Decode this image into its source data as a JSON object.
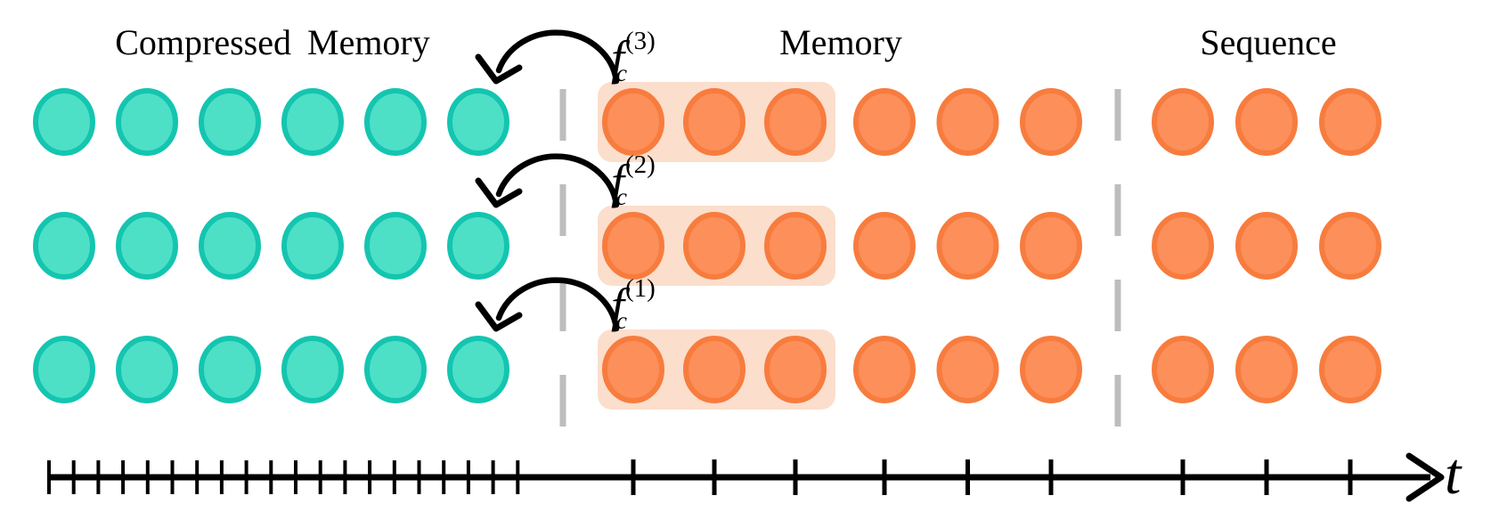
{
  "diagram": {
    "labels": {
      "compressed_memory": "Compressed Memory",
      "memory": "Memory",
      "sequence": "Sequence",
      "time_axis": "t"
    },
    "compression_functions": [
      {
        "base": "f",
        "sub": "c",
        "sup": "(3)"
      },
      {
        "base": "f",
        "sub": "c",
        "sup": "(2)"
      },
      {
        "base": "f",
        "sub": "c",
        "sup": "(1)"
      }
    ],
    "structure": {
      "rows": 3,
      "compressed_memory_tokens_per_row": 6,
      "memory_tokens_per_row": 6,
      "compressed_block_tokens": 3,
      "sequence_tokens_per_row": 3
    },
    "axis": {
      "dense_tick_count": 20,
      "sparse_tick_count": 9,
      "label": "t"
    },
    "colors": {
      "compressed_token_fill": "#4DE0C6",
      "compressed_token_stroke": "#14C5B0",
      "memory_token_fill": "#FC8F5A",
      "memory_token_stroke": "#F77C3E",
      "block_highlight": "#FBDECC",
      "separator": "#BDBDBD",
      "stroke": "#000000"
    }
  }
}
